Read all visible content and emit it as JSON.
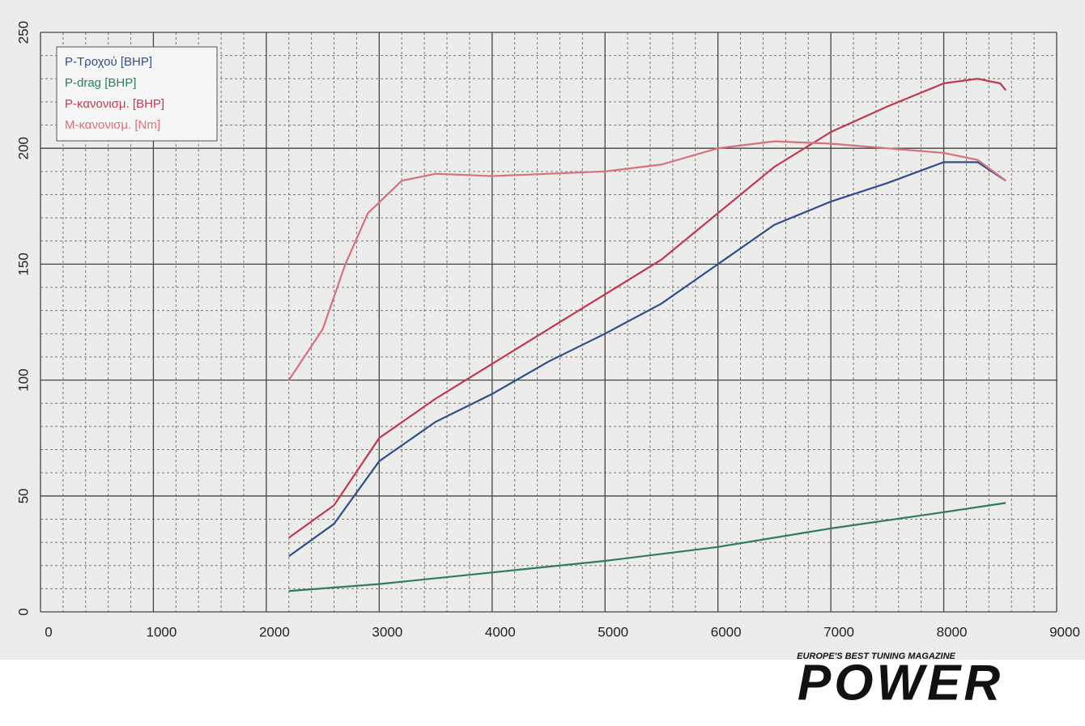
{
  "chart_data": {
    "type": "line",
    "xlim": [
      0,
      9000
    ],
    "xticks": [
      0,
      1000,
      2000,
      3000,
      4000,
      5000,
      6000,
      7000,
      8000,
      9000
    ],
    "ylim": [
      0,
      250
    ],
    "yticks": [
      0,
      50,
      100,
      150,
      200,
      250
    ],
    "grid": true,
    "legend": "top-left",
    "series": [
      {
        "name": "P-Τροχού [BHP]",
        "color": "#2f4f8a",
        "x": [
          2200,
          2600,
          3000,
          3500,
          4000,
          4500,
          5000,
          5500,
          6000,
          6500,
          7000,
          7500,
          8000,
          8300,
          8550
        ],
        "values": [
          24,
          38,
          65,
          82,
          94,
          108,
          120,
          133,
          150,
          167,
          177,
          185,
          194,
          194,
          186
        ]
      },
      {
        "name": "P-drag [BHP]",
        "color": "#2e7d5b",
        "x": [
          2200,
          3000,
          4000,
          5000,
          6000,
          7000,
          8000,
          8550
        ],
        "values": [
          9,
          12,
          17,
          22,
          28,
          36,
          43,
          47
        ]
      },
      {
        "name": "P-κανονισμ. [BHP]",
        "color": "#c0394f",
        "x": [
          2200,
          2600,
          3000,
          3500,
          4000,
          4500,
          5000,
          5500,
          6000,
          6500,
          7000,
          7500,
          8000,
          8300,
          8500,
          8550
        ],
        "values": [
          32,
          46,
          75,
          92,
          107,
          122,
          137,
          152,
          172,
          192,
          207,
          218,
          228,
          230,
          228,
          225
        ]
      },
      {
        "name": "M-κανονισμ. [Nm]",
        "color": "#d9707c",
        "x": [
          2200,
          2500,
          2700,
          2900,
          3200,
          3500,
          4000,
          4500,
          5000,
          5500,
          6000,
          6500,
          7000,
          7500,
          8000,
          8300,
          8550
        ],
        "values": [
          100,
          122,
          150,
          172,
          186,
          189,
          188,
          189,
          190,
          193,
          200,
          203,
          202,
          200,
          198,
          195,
          186
        ]
      }
    ]
  },
  "logo": {
    "tagline": "EUROPE'S BEST TUNING MAGAZINE",
    "name": "POWER"
  }
}
